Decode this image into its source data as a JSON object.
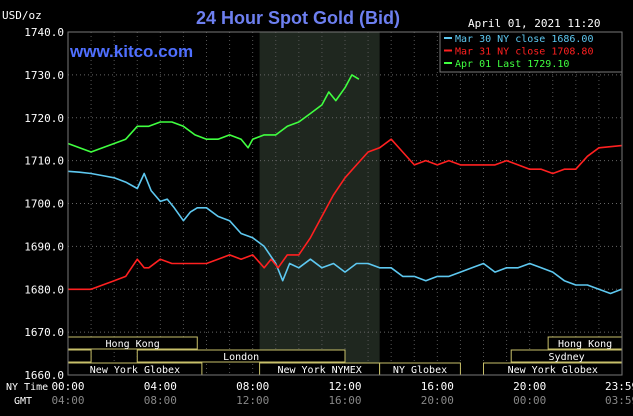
{
  "header": {
    "unit": "USD/oz",
    "title": "24 Hour Spot Gold (Bid)",
    "date": "April 01, 2021 11:20",
    "brand": "www.kitco.com"
  },
  "legend": [
    {
      "label": "Mar 30 NY close 1686.00",
      "color": "#5ec8f0"
    },
    {
      "label": "Mar 31 NY close 1708.80",
      "color": "#ff2020"
    },
    {
      "label": "Apr 01 Last 1729.10",
      "color": "#40ff40"
    }
  ],
  "axes": {
    "y_ticks": [
      "1740.0",
      "1730.0",
      "1720.0",
      "1710.0",
      "1700.0",
      "1690.0",
      "1680.0",
      "1670.0",
      "1660.0"
    ],
    "x_row_label": "NY Time",
    "x_ticks": [
      "00:00",
      "04:00",
      "08:00",
      "12:00",
      "16:00",
      "20:00",
      "23:59"
    ],
    "gmt_row_label": "GMT",
    "gmt_ticks": [
      "04:00",
      "08:00",
      "12:00",
      "16:00",
      "20:00",
      "00:00",
      "03:59"
    ]
  },
  "sessions": {
    "row1": [
      {
        "label": "Hong Kong",
        "start": 0,
        "end": 5.6
      },
      {
        "label": "Hong Kong",
        "start": 20.8,
        "end": 24
      }
    ],
    "row2": [
      {
        "label": "",
        "start": 0,
        "end": 1.0
      },
      {
        "label": "London",
        "start": 3.0,
        "end": 12.0
      },
      {
        "label": "Sydney",
        "start": 19.2,
        "end": 24
      }
    ],
    "row3": [
      {
        "label": "New York Globex",
        "start": 0,
        "end": 5.8
      },
      {
        "label": "New York NYMEX",
        "start": 8.3,
        "end": 13.5
      },
      {
        "label": "NY Globex",
        "start": 13.5,
        "end": 17.0
      },
      {
        "label": "New York Globex",
        "start": 18.0,
        "end": 24
      }
    ]
  },
  "chart_data": {
    "type": "line",
    "title": "24 Hour Spot Gold (Bid)",
    "ylabel": "USD/oz",
    "xlabel": "NY Time",
    "xlim": [
      0,
      24
    ],
    "ylim": [
      1660,
      1740
    ],
    "highlight_band": [
      8.3,
      13.5
    ],
    "series": [
      {
        "name": "Mar 30 NY close 1686.00",
        "color": "#5ec8f0",
        "points": [
          [
            0,
            1707.5
          ],
          [
            0.5,
            1707.3
          ],
          [
            1,
            1707
          ],
          [
            1.5,
            1706.5
          ],
          [
            2,
            1706
          ],
          [
            2.5,
            1705
          ],
          [
            3,
            1703.5
          ],
          [
            3.3,
            1707
          ],
          [
            3.6,
            1703
          ],
          [
            4,
            1700.5
          ],
          [
            4.3,
            1701
          ],
          [
            4.6,
            1699
          ],
          [
            5,
            1696
          ],
          [
            5.3,
            1698
          ],
          [
            5.6,
            1699
          ],
          [
            6,
            1699
          ],
          [
            6.5,
            1697
          ],
          [
            7,
            1696
          ],
          [
            7.5,
            1693
          ],
          [
            8,
            1692
          ],
          [
            8.5,
            1690
          ],
          [
            9,
            1686
          ],
          [
            9.3,
            1682
          ],
          [
            9.6,
            1686
          ],
          [
            10,
            1685
          ],
          [
            10.5,
            1687
          ],
          [
            11,
            1685
          ],
          [
            11.5,
            1686
          ],
          [
            12,
            1684
          ],
          [
            12.5,
            1686
          ],
          [
            13,
            1686
          ],
          [
            13.5,
            1685
          ],
          [
            14,
            1685
          ],
          [
            14.5,
            1683
          ],
          [
            15,
            1683
          ],
          [
            15.5,
            1682
          ],
          [
            16,
            1683
          ],
          [
            16.5,
            1683
          ],
          [
            17,
            1684
          ],
          [
            17.5,
            1685
          ],
          [
            18,
            1686
          ],
          [
            18.5,
            1684
          ],
          [
            19,
            1685
          ],
          [
            19.5,
            1685
          ],
          [
            20,
            1686
          ],
          [
            20.5,
            1685
          ],
          [
            21,
            1684
          ],
          [
            21.5,
            1682
          ],
          [
            22,
            1681
          ],
          [
            22.5,
            1681
          ],
          [
            23,
            1680
          ],
          [
            23.5,
            1679
          ],
          [
            23.98,
            1680
          ]
        ]
      },
      {
        "name": "Mar 31 NY close 1708.80",
        "color": "#ff2020",
        "points": [
          [
            0,
            1680
          ],
          [
            0.5,
            1680
          ],
          [
            1,
            1680
          ],
          [
            1.5,
            1681
          ],
          [
            2,
            1682
          ],
          [
            2.5,
            1683
          ],
          [
            3,
            1687
          ],
          [
            3.3,
            1685
          ],
          [
            3.5,
            1685
          ],
          [
            4,
            1687
          ],
          [
            4.5,
            1686
          ],
          [
            5,
            1686
          ],
          [
            5.5,
            1686
          ],
          [
            6,
            1686
          ],
          [
            6.5,
            1687
          ],
          [
            7,
            1688
          ],
          [
            7.5,
            1687
          ],
          [
            8,
            1688
          ],
          [
            8.5,
            1685
          ],
          [
            8.8,
            1687
          ],
          [
            9.1,
            1685
          ],
          [
            9.5,
            1688
          ],
          [
            10,
            1688
          ],
          [
            10.5,
            1692
          ],
          [
            11,
            1697
          ],
          [
            11.5,
            1702
          ],
          [
            12,
            1706
          ],
          [
            12.5,
            1709
          ],
          [
            13,
            1712
          ],
          [
            13.5,
            1713
          ],
          [
            14,
            1715
          ],
          [
            14.5,
            1712
          ],
          [
            15,
            1709
          ],
          [
            15.5,
            1710
          ],
          [
            16,
            1709
          ],
          [
            16.5,
            1710
          ],
          [
            17,
            1709
          ],
          [
            17.5,
            1709
          ],
          [
            18,
            1709
          ],
          [
            18.5,
            1709
          ],
          [
            19,
            1710
          ],
          [
            19.5,
            1709
          ],
          [
            20,
            1708
          ],
          [
            20.5,
            1708
          ],
          [
            21,
            1707
          ],
          [
            21.5,
            1708
          ],
          [
            22,
            1708
          ],
          [
            22.5,
            1711
          ],
          [
            23,
            1713
          ],
          [
            23.98,
            1713.5
          ]
        ]
      },
      {
        "name": "Apr 01 Last 1729.10",
        "color": "#40ff40",
        "points": [
          [
            0,
            1714
          ],
          [
            0.5,
            1713
          ],
          [
            1,
            1712
          ],
          [
            1.5,
            1713
          ],
          [
            2,
            1714
          ],
          [
            2.5,
            1715
          ],
          [
            3,
            1718
          ],
          [
            3.5,
            1718
          ],
          [
            4,
            1719
          ],
          [
            4.5,
            1719
          ],
          [
            5,
            1718
          ],
          [
            5.5,
            1716
          ],
          [
            6,
            1715
          ],
          [
            6.5,
            1715
          ],
          [
            7,
            1716
          ],
          [
            7.5,
            1715
          ],
          [
            7.8,
            1713
          ],
          [
            8,
            1715
          ],
          [
            8.5,
            1716
          ],
          [
            9,
            1716
          ],
          [
            9.5,
            1718
          ],
          [
            10,
            1719
          ],
          [
            10.5,
            1721
          ],
          [
            11,
            1723
          ],
          [
            11.3,
            1726
          ],
          [
            11.6,
            1724
          ],
          [
            12,
            1727
          ],
          [
            12.3,
            1730
          ],
          [
            12.6,
            1729
          ]
        ]
      }
    ]
  }
}
